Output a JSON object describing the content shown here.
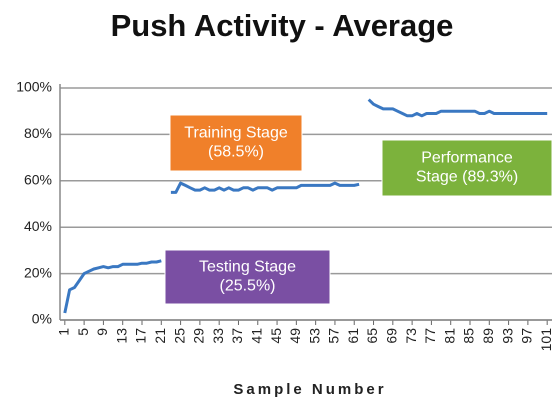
{
  "chart_data": {
    "type": "line",
    "title": "Push Activity - Average",
    "x_label": "Sample Number",
    "x": [
      1,
      2,
      3,
      4,
      5,
      6,
      7,
      8,
      9,
      10,
      11,
      12,
      13,
      14,
      15,
      16,
      17,
      18,
      19,
      20,
      21,
      22,
      23,
      24,
      25,
      26,
      27,
      28,
      29,
      30,
      31,
      32,
      33,
      34,
      35,
      36,
      37,
      38,
      39,
      40,
      41,
      42,
      43,
      44,
      45,
      46,
      47,
      48,
      49,
      50,
      51,
      52,
      53,
      54,
      55,
      56,
      57,
      58,
      59,
      60,
      61,
      62,
      63,
      64,
      65,
      66,
      67,
      68,
      69,
      70,
      71,
      72,
      73,
      74,
      75,
      76,
      77,
      78,
      79,
      80,
      81,
      82,
      83,
      84,
      85,
      86,
      87,
      88,
      89,
      90,
      91,
      92,
      93,
      94,
      95,
      96,
      97,
      98,
      99,
      100,
      101
    ],
    "series": [
      {
        "name": "Push Activity",
        "color": "#3a78c2",
        "values": [
          3,
          13,
          14,
          17,
          20,
          21,
          22,
          22.5,
          23,
          22.5,
          23,
          23,
          24,
          24,
          24,
          24,
          24.5,
          24.5,
          25,
          25,
          25.5,
          null,
          55,
          55,
          59,
          58,
          57,
          56,
          56,
          57,
          56,
          56,
          57,
          56,
          57,
          56,
          56,
          57,
          57,
          56,
          57,
          57,
          57,
          56,
          57,
          57,
          57,
          57,
          57,
          58,
          58,
          58,
          58,
          58,
          58,
          58,
          59,
          58,
          58,
          58,
          58,
          58.5,
          null,
          95,
          93,
          92,
          91,
          91,
          91,
          90,
          89,
          88,
          88,
          89,
          88,
          89,
          89,
          89,
          90,
          90,
          90,
          90,
          90,
          90,
          90,
          90,
          89,
          89,
          90,
          89,
          89,
          89,
          89,
          89,
          89,
          89,
          89,
          89,
          89,
          89,
          89
        ]
      }
    ],
    "xlim": [
      0,
      102
    ],
    "xticks": [
      1,
      5,
      9,
      13,
      17,
      21,
      25,
      29,
      33,
      37,
      41,
      45,
      49,
      53,
      57,
      61,
      65,
      69,
      73,
      77,
      81,
      85,
      89,
      93,
      97,
      101
    ],
    "ylim": [
      0,
      100
    ],
    "yticks": [
      {
        "value": 0,
        "label": "0%"
      },
      {
        "value": 20,
        "label": "20%"
      },
      {
        "value": 40,
        "label": "40%"
      },
      {
        "value": 60,
        "label": "60%"
      },
      {
        "value": 80,
        "label": "80%"
      },
      {
        "value": 100,
        "label": "100%"
      }
    ],
    "grid": true,
    "annotations": [
      {
        "lines": [
          "Training Stage",
          "(58.5%)"
        ],
        "color": "#f0802a"
      },
      {
        "lines": [
          "Performance",
          "Stage (89.3%)"
        ],
        "color": "#7cb23c"
      },
      {
        "lines": [
          "Testing Stage",
          "(25.5%)"
        ],
        "color": "#7a4fa3"
      }
    ]
  }
}
